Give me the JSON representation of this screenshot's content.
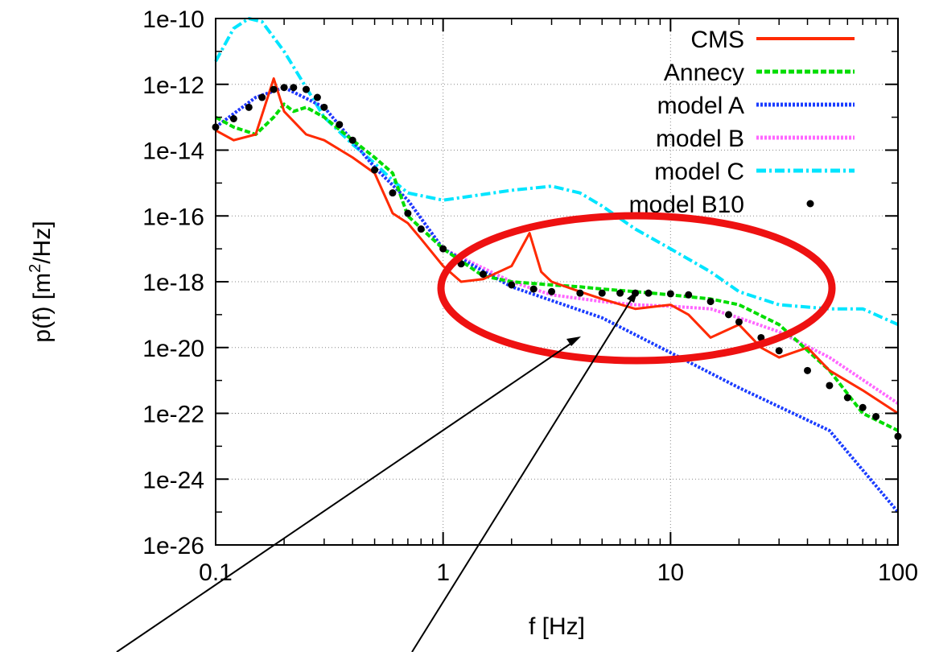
{
  "chart_data": {
    "type": "line",
    "xlabel": "f [Hz]",
    "ylabel": "p(f) [m²/Hz]",
    "ylabel_parts": {
      "base": "p(f) [m",
      "sup": "2",
      "tail": "/Hz]"
    },
    "x_scale": "log",
    "y_scale": "log",
    "xlim": [
      0.1,
      100
    ],
    "ylim": [
      1e-26,
      1e-10
    ],
    "x_ticks": [
      0.1,
      1,
      10,
      100
    ],
    "x_tick_labels": [
      "0.1",
      "1",
      "10",
      "100"
    ],
    "y_ticks": [
      1e-26,
      1e-24,
      1e-22,
      1e-20,
      1e-18,
      1e-16,
      1e-14,
      1e-12,
      1e-10
    ],
    "y_tick_labels": [
      "1e-26",
      "1e-24",
      "1e-22",
      "1e-20",
      "1e-18",
      "1e-16",
      "1e-14",
      "1e-12",
      "1e-10"
    ],
    "grid": true,
    "legend_position": "top-right",
    "series": [
      {
        "name": "CMS",
        "color": "#ff2a00",
        "style": "solid",
        "x": [
          0.1,
          0.12,
          0.15,
          0.18,
          0.2,
          0.25,
          0.3,
          0.4,
          0.5,
          0.6,
          0.7,
          0.8,
          1,
          1.2,
          1.5,
          2,
          2.4,
          2.7,
          3,
          4,
          5,
          7,
          10,
          12,
          15,
          20,
          25,
          30,
          40,
          50,
          70,
          100
        ],
        "y": [
          4e-14,
          2e-14,
          3e-14,
          1.5e-12,
          1.5e-13,
          3e-14,
          2e-14,
          6e-15,
          2e-15,
          1.2e-16,
          6e-17,
          2e-17,
          3e-18,
          1e-18,
          1.2e-18,
          3e-18,
          3e-17,
          2e-18,
          1e-18,
          5e-19,
          3e-19,
          1.5e-19,
          2e-19,
          1e-19,
          2e-20,
          5e-20,
          1e-20,
          5e-21,
          1e-20,
          2e-21,
          5e-22,
          1e-22
        ]
      },
      {
        "name": "Annecy",
        "color": "#00dd00",
        "style": "dashed",
        "x": [
          0.1,
          0.12,
          0.15,
          0.18,
          0.2,
          0.22,
          0.25,
          0.3,
          0.4,
          0.5,
          0.6,
          0.7,
          1,
          1.5,
          2,
          3,
          4,
          5,
          7,
          10,
          15,
          20,
          30,
          50,
          70,
          100
        ],
        "y": [
          1e-13,
          5e-14,
          3e-14,
          1e-13,
          2.5e-13,
          1.5e-13,
          2e-13,
          1e-13,
          2e-14,
          6e-15,
          2e-15,
          1e-16,
          1e-17,
          1.5e-18,
          1e-18,
          8e-19,
          7e-19,
          6e-19,
          5e-19,
          4e-19,
          3e-19,
          2e-19,
          5e-20,
          2e-21,
          1e-22,
          3e-23
        ]
      },
      {
        "name": "model A",
        "color": "#1a3cff",
        "style": "dotted",
        "x": [
          0.1,
          0.15,
          0.2,
          0.3,
          0.5,
          0.7,
          1,
          2,
          5,
          10,
          20,
          50,
          100
        ],
        "y": [
          5e-14,
          4e-13,
          8e-13,
          2e-13,
          3e-15,
          3e-16,
          1e-17,
          7e-19,
          8e-20,
          7e-21,
          6e-22,
          3e-23,
          1e-25
        ]
      },
      {
        "name": "model B",
        "color": "#ff66ff",
        "style": "dotted",
        "x": [
          0.1,
          0.15,
          0.2,
          0.3,
          0.5,
          0.7,
          1,
          2,
          3,
          5,
          7,
          10,
          15,
          20,
          30,
          50,
          100
        ],
        "y": [
          5e-14,
          4e-13,
          8e-13,
          2e-13,
          3e-15,
          3e-16,
          1e-17,
          1e-18,
          4e-19,
          2.5e-19,
          2e-19,
          1.8e-19,
          1.5e-19,
          8e-20,
          3e-20,
          5e-21,
          2e-22
        ]
      },
      {
        "name": "model C",
        "color": "#00e5ff",
        "style": "dashdot",
        "x": [
          0.1,
          0.12,
          0.14,
          0.16,
          0.2,
          0.3,
          0.4,
          0.5,
          0.6,
          0.7,
          1,
          2,
          3,
          4,
          5,
          7,
          10,
          15,
          20,
          30,
          50,
          70,
          100
        ],
        "y": [
          5e-12,
          5e-11,
          1e-10,
          8e-11,
          1e-11,
          1e-13,
          1.5e-14,
          4e-15,
          1.2e-15,
          5e-16,
          3e-16,
          6e-16,
          8e-16,
          5e-16,
          2e-16,
          4e-17,
          1e-17,
          2e-18,
          5e-19,
          2e-19,
          1.5e-19,
          1.5e-19,
          5e-20
        ]
      },
      {
        "name": "model B10",
        "color": "#000000",
        "style": "points",
        "x": [
          0.1,
          0.12,
          0.14,
          0.16,
          0.18,
          0.2,
          0.22,
          0.25,
          0.28,
          0.3,
          0.35,
          0.4,
          0.5,
          0.6,
          0.7,
          0.8,
          1,
          1.2,
          1.5,
          2,
          2.5,
          3,
          4,
          5,
          6,
          7,
          8,
          10,
          12,
          15,
          18,
          20,
          25,
          30,
          40,
          50,
          60,
          70,
          80,
          100
        ],
        "y": [
          5e-14,
          9e-14,
          2e-13,
          4e-13,
          7e-13,
          8e-13,
          8e-13,
          7e-13,
          4e-13,
          2e-13,
          6e-14,
          2e-14,
          2.5e-15,
          5e-16,
          1.2e-16,
          4e-17,
          1e-17,
          3.5e-18,
          1.7e-18,
          8e-19,
          6e-19,
          5e-19,
          4.5e-19,
          4.5e-19,
          4.5e-19,
          4.5e-19,
          4.5e-19,
          4.3e-19,
          4e-19,
          2.5e-19,
          1e-19,
          6e-20,
          2e-20,
          8e-21,
          2e-21,
          7e-22,
          3e-22,
          1.5e-22,
          8e-23,
          2e-23
        ]
      }
    ]
  }
}
